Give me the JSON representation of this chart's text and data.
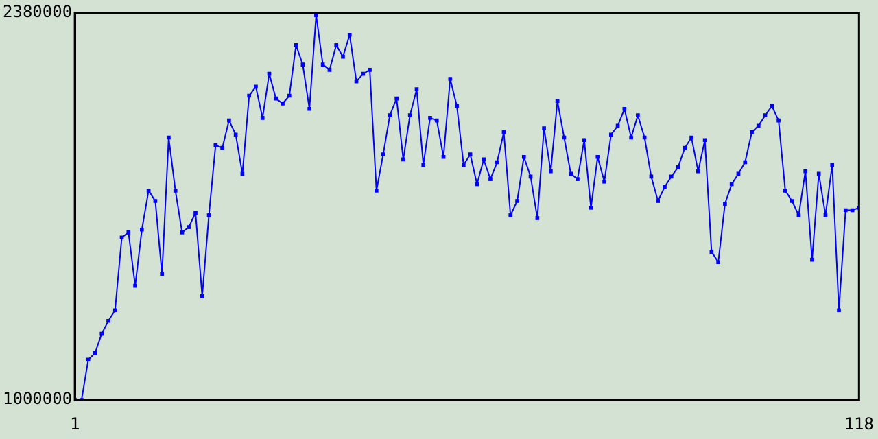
{
  "chart_data": {
    "type": "line",
    "x": [
      1,
      2,
      3,
      4,
      5,
      6,
      7,
      8,
      9,
      10,
      11,
      12,
      13,
      14,
      15,
      16,
      17,
      18,
      19,
      20,
      21,
      22,
      23,
      24,
      25,
      26,
      27,
      28,
      29,
      30,
      31,
      32,
      33,
      34,
      35,
      36,
      37,
      38,
      39,
      40,
      41,
      42,
      43,
      44,
      45,
      46,
      47,
      48,
      49,
      50,
      51,
      52,
      53,
      54,
      55,
      56,
      57,
      58,
      59,
      60,
      61,
      62,
      63,
      64,
      65,
      66,
      67,
      68,
      69,
      70,
      71,
      72,
      73,
      74,
      75,
      76,
      77,
      78,
      79,
      80,
      81,
      82,
      83,
      84,
      85,
      86,
      87,
      88,
      89,
      90,
      91,
      92,
      93,
      94,
      95,
      96,
      97,
      98,
      99,
      100,
      101,
      102,
      103,
      104,
      105,
      106,
      107,
      108,
      109,
      110,
      111,
      112,
      113,
      114,
      115,
      116,
      117,
      118
    ],
    "series": [
      {
        "color": "#0000ff",
        "values": [
          1000000,
          1000000,
          1144000,
          1167000,
          1236000,
          1282000,
          1320000,
          1579000,
          1597000,
          1407000,
          1607000,
          1746000,
          1709000,
          1449000,
          1935000,
          1746000,
          1597000,
          1616000,
          1667000,
          1370000,
          1658000,
          1908000,
          1898000,
          1996000,
          1945000,
          1806000,
          2084000,
          2116000,
          2005000,
          2162000,
          2074000,
          2056000,
          2084000,
          2264000,
          2195000,
          2037000,
          2371000,
          2195000,
          2176000,
          2264000,
          2223000,
          2301000,
          2135000,
          2162000,
          2176000,
          1746000,
          1875000,
          2014000,
          2074000,
          1857000,
          2014000,
          2107000,
          1838000,
          2005000,
          1996000,
          1866000,
          2144000,
          2047000,
          1838000,
          1875000,
          1769000,
          1857000,
          1787000,
          1847000,
          1954000,
          1658000,
          1709000,
          1866000,
          1796000,
          1648000,
          1968000,
          1815000,
          2065000,
          1935000,
          1806000,
          1787000,
          1926000,
          1685000,
          1866000,
          1778000,
          1945000,
          1977000,
          2037000,
          1935000,
          2014000,
          1935000,
          1796000,
          1709000,
          1759000,
          1796000,
          1829000,
          1898000,
          1935000,
          1815000,
          1926000,
          1528000,
          1491000,
          1699000,
          1769000,
          1806000,
          1847000,
          1954000,
          1977000,
          2014000,
          2047000,
          1996000,
          1746000,
          1709000,
          1658000,
          1815000,
          1500000,
          1806000,
          1658000,
          1838000,
          1320000,
          1676000,
          1676000,
          1685000
        ]
      }
    ],
    "xlim": [
      1,
      118
    ],
    "xticks": [
      1,
      118
    ],
    "ylim": [
      1000000,
      2380000
    ],
    "yticks": [
      1000000,
      2380000
    ],
    "grid": false,
    "legend": false,
    "marker": "square",
    "line_style": "solid"
  }
}
